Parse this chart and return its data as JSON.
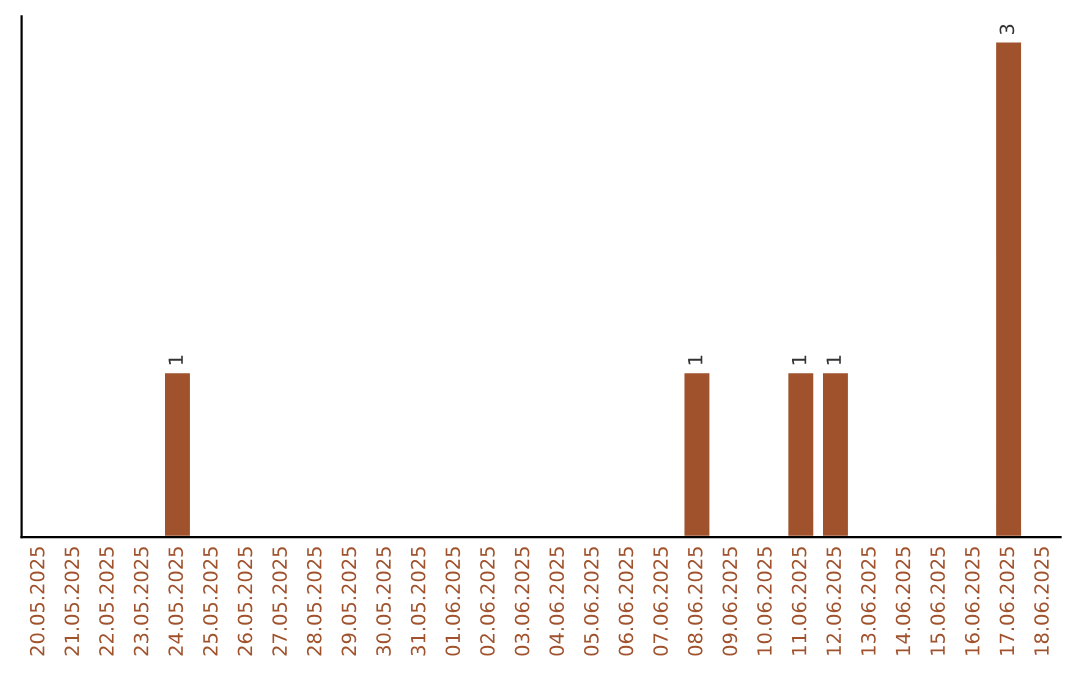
{
  "chart_data": {
    "type": "bar",
    "categories": [
      "20.05.2025",
      "21.05.2025",
      "22.05.2025",
      "23.05.2025",
      "24.05.2025",
      "25.05.2025",
      "26.05.2025",
      "27.05.2025",
      "28.05.2025",
      "29.05.2025",
      "30.05.2025",
      "31.05.2025",
      "01.06.2025",
      "02.06.2025",
      "03.06.2025",
      "04.06.2025",
      "05.06.2025",
      "06.06.2025",
      "07.06.2025",
      "08.06.2025",
      "09.06.2025",
      "10.06.2025",
      "11.06.2025",
      "12.06.2025",
      "13.06.2025",
      "14.06.2025",
      "15.06.2025",
      "16.06.2025",
      "17.06.2025",
      "18.06.2025"
    ],
    "values": [
      null,
      null,
      null,
      null,
      1,
      null,
      null,
      null,
      null,
      null,
      null,
      null,
      null,
      null,
      null,
      null,
      null,
      null,
      null,
      1,
      null,
      null,
      1,
      1,
      null,
      null,
      null,
      null,
      3,
      null
    ],
    "value_labels": [
      null,
      null,
      null,
      null,
      "1",
      null,
      null,
      null,
      null,
      null,
      null,
      null,
      null,
      null,
      null,
      null,
      null,
      null,
      null,
      "1",
      null,
      null,
      "1",
      "1",
      null,
      null,
      null,
      null,
      "3",
      null
    ],
    "color": "#a0522d",
    "tick_labels": "x",
    "grid": false
  }
}
